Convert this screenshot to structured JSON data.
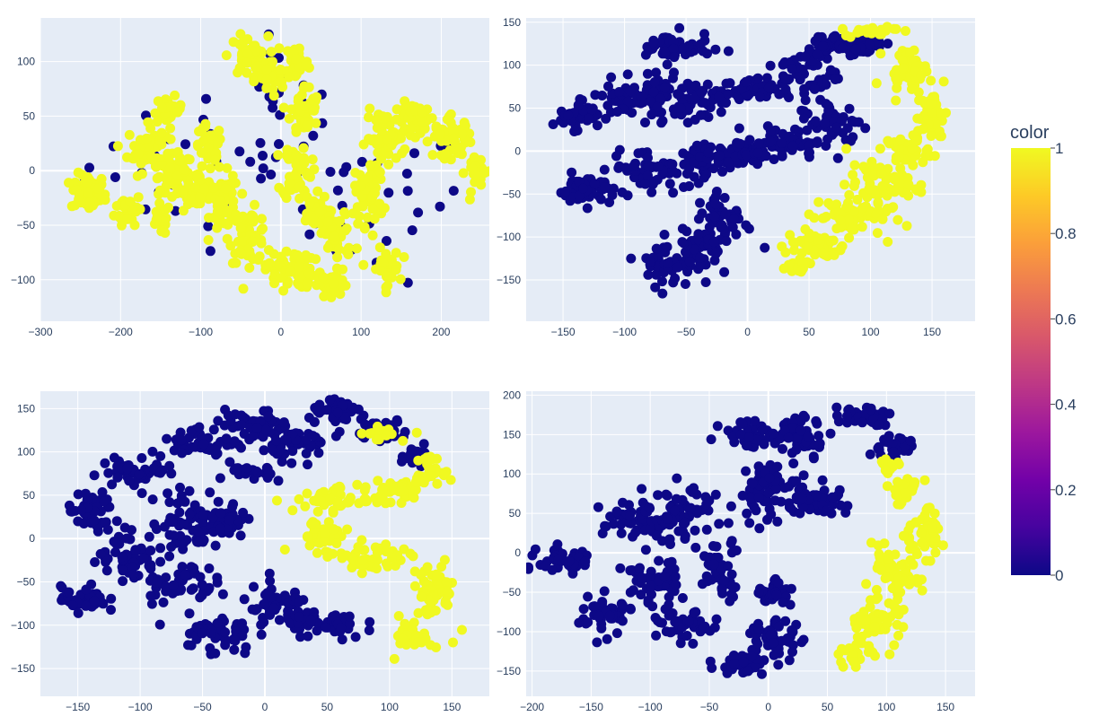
{
  "chart_data": {
    "type": "scatter",
    "colorscale": "Plasma",
    "colorbar": {
      "title": "color",
      "range": [
        0,
        1
      ],
      "ticks": [
        0,
        0.2,
        0.4,
        0.6,
        0.8,
        1
      ],
      "tick_labels": [
        "0",
        "0.2",
        "0.4",
        "0.6",
        "0.8",
        "1"
      ],
      "colors": [
        "#0d0887",
        "#46039f",
        "#7201a8",
        "#9c179e",
        "#bd3786",
        "#d8576b",
        "#ed7953",
        "#fb9f3a",
        "#fdca26",
        "#f0f921"
      ]
    },
    "colors": {
      "plot_bg": "#e5ecf6",
      "grid": "#ffffff",
      "class_0": "#0d0887",
      "class_1": "#f0f921"
    },
    "grid": true,
    "legend": "none",
    "subplots": [
      {
        "id": "top-left",
        "xlim": [
          -300,
          260
        ],
        "ylim": [
          -138,
          140
        ],
        "xticks": [
          -300,
          -200,
          -100,
          0,
          100,
          200
        ],
        "xtick_labels": [
          "−300",
          "−200",
          "−100",
          "0",
          "100",
          "200"
        ],
        "yticks": [
          -100,
          -50,
          0,
          50,
          100
        ],
        "ytick_labels": [
          "−100",
          "−50",
          "0",
          "50",
          "100"
        ],
        "clusters": [
          {
            "x": -240,
            "y": -20,
            "sx": 18,
            "sy": 14,
            "c": 1,
            "n": 60
          },
          {
            "x": -190,
            "y": -35,
            "sx": 14,
            "sy": 12,
            "c": 1,
            "n": 40
          },
          {
            "x": -165,
            "y": 20,
            "sx": 22,
            "sy": 18,
            "c": 1,
            "n": 60
          },
          {
            "x": -140,
            "y": 55,
            "sx": 14,
            "sy": 10,
            "c": 1,
            "n": 30
          },
          {
            "x": -130,
            "y": -5,
            "sx": 25,
            "sy": 12,
            "c": 1,
            "n": 50
          },
          {
            "x": -100,
            "y": -20,
            "sx": 18,
            "sy": 15,
            "c": 1,
            "n": 40
          },
          {
            "x": -150,
            "y": -45,
            "sx": 10,
            "sy": 12,
            "c": 1,
            "n": 20
          },
          {
            "x": -90,
            "y": 20,
            "sx": 15,
            "sy": 18,
            "c": 1,
            "n": 40
          },
          {
            "x": -70,
            "y": -30,
            "sx": 15,
            "sy": 22,
            "c": 1,
            "n": 50
          },
          {
            "x": -40,
            "y": -60,
            "sx": 20,
            "sy": 20,
            "c": 1,
            "n": 50
          },
          {
            "x": -40,
            "y": 105,
            "sx": 20,
            "sy": 15,
            "c": 1,
            "n": 50
          },
          {
            "x": -15,
            "y": 85,
            "sx": 15,
            "sy": 15,
            "c": 1,
            "n": 40
          },
          {
            "x": 20,
            "y": 100,
            "sx": 12,
            "sy": 15,
            "c": 1,
            "n": 35
          },
          {
            "x": 30,
            "y": 55,
            "sx": 15,
            "sy": 20,
            "c": 1,
            "n": 45
          },
          {
            "x": 20,
            "y": 0,
            "sx": 15,
            "sy": 22,
            "c": 1,
            "n": 45
          },
          {
            "x": 40,
            "y": -40,
            "sx": 15,
            "sy": 15,
            "c": 1,
            "n": 35
          },
          {
            "x": 10,
            "y": -90,
            "sx": 25,
            "sy": 15,
            "c": 1,
            "n": 55
          },
          {
            "x": 60,
            "y": -105,
            "sx": 20,
            "sy": 12,
            "c": 1,
            "n": 45
          },
          {
            "x": 70,
            "y": -60,
            "sx": 18,
            "sy": 20,
            "c": 1,
            "n": 40
          },
          {
            "x": 110,
            "y": -20,
            "sx": 15,
            "sy": 25,
            "c": 1,
            "n": 45
          },
          {
            "x": 130,
            "y": -90,
            "sx": 15,
            "sy": 15,
            "c": 1,
            "n": 35
          },
          {
            "x": 130,
            "y": 30,
            "sx": 20,
            "sy": 20,
            "c": 1,
            "n": 45
          },
          {
            "x": 175,
            "y": 45,
            "sx": 25,
            "sy": 15,
            "c": 1,
            "n": 50
          },
          {
            "x": 215,
            "y": 30,
            "sx": 20,
            "sy": 15,
            "c": 1,
            "n": 40
          },
          {
            "x": 245,
            "y": 0,
            "sx": 12,
            "sy": 15,
            "c": 1,
            "n": 25
          },
          {
            "x": -60,
            "y": 5,
            "sx": 150,
            "sy": 50,
            "c": 0,
            "n": 40
          },
          {
            "x": 120,
            "y": -30,
            "sx": 90,
            "sy": 60,
            "c": 0,
            "n": 30
          },
          {
            "x": 0,
            "y": 80,
            "sx": 40,
            "sy": 30,
            "c": 0,
            "n": 15
          }
        ]
      },
      {
        "id": "top-right",
        "xlim": [
          -180,
          185
        ],
        "ylim": [
          -198,
          155
        ],
        "xticks": [
          -150,
          -100,
          -50,
          0,
          50,
          100,
          150
        ],
        "xtick_labels": [
          "−150",
          "−100",
          "−50",
          "0",
          "50",
          "100",
          "150"
        ],
        "yticks": [
          -150,
          -100,
          -50,
          0,
          50,
          100,
          150
        ],
        "ytick_labels": [
          "−150",
          "−100",
          "−50",
          "0",
          "50",
          "100",
          "150"
        ],
        "clusters": [
          {
            "x": -140,
            "y": 40,
            "sx": 15,
            "sy": 12,
            "c": 0,
            "n": 40
          },
          {
            "x": -130,
            "y": -45,
            "sx": 20,
            "sy": 15,
            "c": 0,
            "n": 50
          },
          {
            "x": -90,
            "y": 60,
            "sx": 30,
            "sy": 18,
            "c": 0,
            "n": 60
          },
          {
            "x": -60,
            "y": 120,
            "sx": 25,
            "sy": 15,
            "c": 0,
            "n": 50
          },
          {
            "x": -50,
            "y": 60,
            "sx": 35,
            "sy": 20,
            "c": 0,
            "n": 70
          },
          {
            "x": -80,
            "y": -20,
            "sx": 25,
            "sy": 20,
            "c": 0,
            "n": 50
          },
          {
            "x": -40,
            "y": -15,
            "sx": 15,
            "sy": 25,
            "c": 0,
            "n": 40
          },
          {
            "x": 0,
            "y": 70,
            "sx": 20,
            "sy": 12,
            "c": 0,
            "n": 35
          },
          {
            "x": -10,
            "y": -5,
            "sx": 20,
            "sy": 12,
            "c": 0,
            "n": 40
          },
          {
            "x": 30,
            "y": 10,
            "sx": 25,
            "sy": 15,
            "c": 0,
            "n": 45
          },
          {
            "x": 50,
            "y": 90,
            "sx": 20,
            "sy": 30,
            "c": 0,
            "n": 60
          },
          {
            "x": 70,
            "y": 125,
            "sx": 20,
            "sy": 12,
            "c": 0,
            "n": 40
          },
          {
            "x": 70,
            "y": 30,
            "sx": 20,
            "sy": 25,
            "c": 0,
            "n": 50
          },
          {
            "x": -20,
            "y": -80,
            "sx": 20,
            "sy": 25,
            "c": 0,
            "n": 45
          },
          {
            "x": -60,
            "y": -130,
            "sx": 25,
            "sy": 22,
            "c": 0,
            "n": 55
          },
          {
            "x": -40,
            "y": -110,
            "sx": 15,
            "sy": 15,
            "c": 0,
            "n": 30
          },
          {
            "x": 95,
            "y": 125,
            "sx": 15,
            "sy": 10,
            "c": 0,
            "n": 30
          },
          {
            "x": 100,
            "y": 140,
            "sx": 18,
            "sy": 5,
            "c": 1,
            "n": 20
          },
          {
            "x": 130,
            "y": 95,
            "sx": 15,
            "sy": 20,
            "c": 1,
            "n": 40
          },
          {
            "x": 150,
            "y": 40,
            "sx": 10,
            "sy": 25,
            "c": 1,
            "n": 40
          },
          {
            "x": 130,
            "y": 0,
            "sx": 15,
            "sy": 15,
            "c": 1,
            "n": 40
          },
          {
            "x": 110,
            "y": -40,
            "sx": 25,
            "sy": 20,
            "c": 1,
            "n": 60
          },
          {
            "x": 80,
            "y": -75,
            "sx": 25,
            "sy": 20,
            "c": 1,
            "n": 60
          },
          {
            "x": 55,
            "y": -110,
            "sx": 20,
            "sy": 15,
            "c": 1,
            "n": 50
          },
          {
            "x": 40,
            "y": -135,
            "sx": 10,
            "sy": 8,
            "c": 1,
            "n": 25
          }
        ]
      },
      {
        "id": "bottom-left",
        "xlim": [
          -180,
          180
        ],
        "ylim": [
          -182,
          170
        ],
        "xticks": [
          -150,
          -100,
          -50,
          0,
          50,
          100,
          150
        ],
        "xtick_labels": [
          "−150",
          "−100",
          "−50",
          "0",
          "50",
          "100",
          "150"
        ],
        "yticks": [
          -150,
          -100,
          -50,
          0,
          50,
          100,
          150
        ],
        "ytick_labels": [
          "−150",
          "−100",
          "−50",
          "0",
          "50",
          "100",
          "150"
        ],
        "clusters": [
          {
            "x": -140,
            "y": 30,
            "sx": 15,
            "sy": 20,
            "c": 0,
            "n": 45
          },
          {
            "x": -145,
            "y": -70,
            "sx": 15,
            "sy": 12,
            "c": 0,
            "n": 40
          },
          {
            "x": -110,
            "y": -20,
            "sx": 20,
            "sy": 25,
            "c": 0,
            "n": 50
          },
          {
            "x": -100,
            "y": 80,
            "sx": 25,
            "sy": 15,
            "c": 0,
            "n": 45
          },
          {
            "x": -60,
            "y": 20,
            "sx": 25,
            "sy": 30,
            "c": 0,
            "n": 60
          },
          {
            "x": -70,
            "y": -50,
            "sx": 25,
            "sy": 20,
            "c": 0,
            "n": 50
          },
          {
            "x": -40,
            "y": -110,
            "sx": 25,
            "sy": 20,
            "c": 0,
            "n": 50
          },
          {
            "x": -50,
            "y": 110,
            "sx": 20,
            "sy": 15,
            "c": 0,
            "n": 45
          },
          {
            "x": -10,
            "y": 130,
            "sx": 25,
            "sy": 15,
            "c": 0,
            "n": 50
          },
          {
            "x": -10,
            "y": 75,
            "sx": 15,
            "sy": 10,
            "c": 0,
            "n": 25
          },
          {
            "x": -30,
            "y": 20,
            "sx": 12,
            "sy": 20,
            "c": 0,
            "n": 30
          },
          {
            "x": 30,
            "y": 110,
            "sx": 20,
            "sy": 15,
            "c": 0,
            "n": 40
          },
          {
            "x": 60,
            "y": 145,
            "sx": 20,
            "sy": 10,
            "c": 0,
            "n": 40
          },
          {
            "x": 10,
            "y": -80,
            "sx": 25,
            "sy": 20,
            "c": 0,
            "n": 55
          },
          {
            "x": 50,
            "y": -100,
            "sx": 25,
            "sy": 15,
            "c": 0,
            "n": 45
          },
          {
            "x": 90,
            "y": 125,
            "sx": 20,
            "sy": 10,
            "c": 0,
            "n": 40
          },
          {
            "x": 120,
            "y": 100,
            "sx": 12,
            "sy": 12,
            "c": 0,
            "n": 25
          },
          {
            "x": 95,
            "y": 120,
            "sx": 15,
            "sy": 6,
            "c": 1,
            "n": 15
          },
          {
            "x": 130,
            "y": 80,
            "sx": 10,
            "sy": 12,
            "c": 1,
            "n": 25
          },
          {
            "x": 60,
            "y": 45,
            "sx": 30,
            "sy": 12,
            "c": 1,
            "n": 50
          },
          {
            "x": 110,
            "y": 55,
            "sx": 20,
            "sy": 10,
            "c": 1,
            "n": 35
          },
          {
            "x": 45,
            "y": 5,
            "sx": 20,
            "sy": 15,
            "c": 1,
            "n": 45
          },
          {
            "x": 85,
            "y": -25,
            "sx": 25,
            "sy": 15,
            "c": 1,
            "n": 50
          },
          {
            "x": 135,
            "y": -60,
            "sx": 15,
            "sy": 25,
            "c": 1,
            "n": 50
          },
          {
            "x": 120,
            "y": -110,
            "sx": 12,
            "sy": 18,
            "c": 1,
            "n": 35
          }
        ]
      },
      {
        "id": "bottom-right",
        "xlim": [
          -205,
          175
        ],
        "ylim": [
          -182,
          205
        ],
        "xticks": [
          -200,
          -150,
          -100,
          -50,
          0,
          50,
          100,
          150
        ],
        "xtick_labels": [
          "−200",
          "−150",
          "−100",
          "−50",
          "0",
          "50",
          "100",
          "150"
        ],
        "yticks": [
          -150,
          -100,
          -50,
          0,
          50,
          100,
          150,
          200
        ],
        "ytick_labels": [
          "−150",
          "−100",
          "−50",
          "0",
          "50",
          "100",
          "150",
          "200"
        ],
        "clusters": [
          {
            "x": -170,
            "y": -10,
            "sx": 20,
            "sy": 15,
            "c": 0,
            "n": 45
          },
          {
            "x": -140,
            "y": -80,
            "sx": 20,
            "sy": 20,
            "c": 0,
            "n": 45
          },
          {
            "x": -110,
            "y": 40,
            "sx": 25,
            "sy": 25,
            "c": 0,
            "n": 55
          },
          {
            "x": -100,
            "y": -40,
            "sx": 20,
            "sy": 25,
            "c": 0,
            "n": 50
          },
          {
            "x": -70,
            "y": 50,
            "sx": 25,
            "sy": 30,
            "c": 0,
            "n": 55
          },
          {
            "x": -70,
            "y": -95,
            "sx": 20,
            "sy": 15,
            "c": 0,
            "n": 40
          },
          {
            "x": -40,
            "y": -20,
            "sx": 15,
            "sy": 30,
            "c": 0,
            "n": 45
          },
          {
            "x": -10,
            "y": 150,
            "sx": 25,
            "sy": 15,
            "c": 0,
            "n": 50
          },
          {
            "x": 0,
            "y": 80,
            "sx": 20,
            "sy": 30,
            "c": 0,
            "n": 60
          },
          {
            "x": 30,
            "y": 150,
            "sx": 20,
            "sy": 20,
            "c": 0,
            "n": 45
          },
          {
            "x": 40,
            "y": 70,
            "sx": 20,
            "sy": 20,
            "c": 0,
            "n": 45
          },
          {
            "x": 5,
            "y": -50,
            "sx": 12,
            "sy": 20,
            "c": 0,
            "n": 30
          },
          {
            "x": 5,
            "y": -110,
            "sx": 20,
            "sy": 20,
            "c": 0,
            "n": 45
          },
          {
            "x": -20,
            "y": -140,
            "sx": 20,
            "sy": 12,
            "c": 0,
            "n": 35
          },
          {
            "x": 80,
            "y": 175,
            "sx": 20,
            "sy": 10,
            "c": 0,
            "n": 35
          },
          {
            "x": 105,
            "y": 135,
            "sx": 15,
            "sy": 15,
            "c": 0,
            "n": 30
          },
          {
            "x": 100,
            "y": 110,
            "sx": 8,
            "sy": 10,
            "c": 1,
            "n": 12
          },
          {
            "x": 115,
            "y": 80,
            "sx": 12,
            "sy": 15,
            "c": 1,
            "n": 30
          },
          {
            "x": 130,
            "y": 25,
            "sx": 15,
            "sy": 25,
            "c": 1,
            "n": 45
          },
          {
            "x": 105,
            "y": -30,
            "sx": 20,
            "sy": 25,
            "c": 1,
            "n": 55
          },
          {
            "x": 90,
            "y": -90,
            "sx": 20,
            "sy": 25,
            "c": 1,
            "n": 55
          },
          {
            "x": 75,
            "y": -130,
            "sx": 12,
            "sy": 10,
            "c": 1,
            "n": 25
          }
        ]
      }
    ]
  }
}
